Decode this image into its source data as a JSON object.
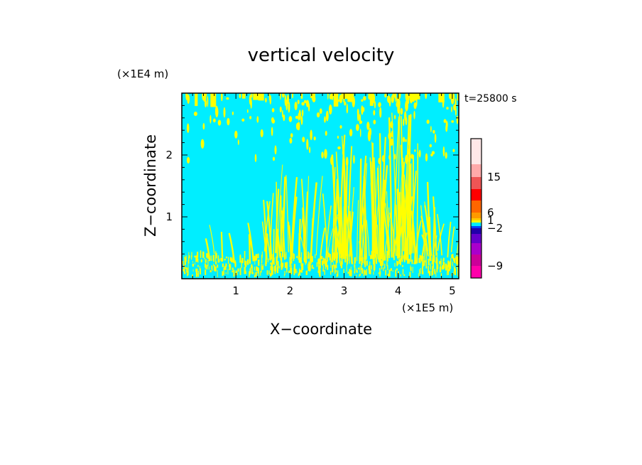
{
  "chart_data": {
    "type": "heatmap",
    "title": "vertical velocity",
    "xlabel": "X−coordinate",
    "ylabel": "Z−coordinate",
    "x_unit": "(×1E5 m)",
    "y_unit": "(×1E4 m)",
    "time_label": "t=25800 s",
    "xlim": [
      0,
      5.12
    ],
    "ylim": [
      0,
      3
    ],
    "x_ticks": [
      1,
      2,
      3,
      4,
      5
    ],
    "x_tick_labels": [
      "1",
      "2",
      "3",
      "4",
      "5"
    ],
    "y_ticks": [
      1,
      2
    ],
    "y_tick_labels": [
      "1",
      "2"
    ],
    "colors": {
      "background_field": "#00eeff",
      "updraft_field": "#ffff00"
    },
    "colorbar": {
      "levels": [
        {
          "color": "#ff00aa"
        },
        {
          "color": "#cc0099"
        },
        {
          "color": "#aa00cc"
        },
        {
          "color": "#6600cc"
        },
        {
          "color": "#2200aa"
        },
        {
          "color": "#0044ff"
        },
        {
          "color": "#00eeff"
        },
        {
          "color": "#ffff00"
        },
        {
          "color": "#ffcc00"
        },
        {
          "color": "#ff9900"
        },
        {
          "color": "#ff6600"
        },
        {
          "color": "#ff0000"
        },
        {
          "color": "#ee5555"
        },
        {
          "color": "#ffaaaa"
        },
        {
          "color": "#ffe8e8"
        }
      ],
      "labels": [
        {
          "text": "15",
          "value": 15
        },
        {
          "text": "6",
          "value": 6
        },
        {
          "text": "1",
          "value": 1
        },
        {
          "text": "−2",
          "value": -2
        },
        {
          "text": "−9",
          "value": -9
        }
      ]
    }
  }
}
